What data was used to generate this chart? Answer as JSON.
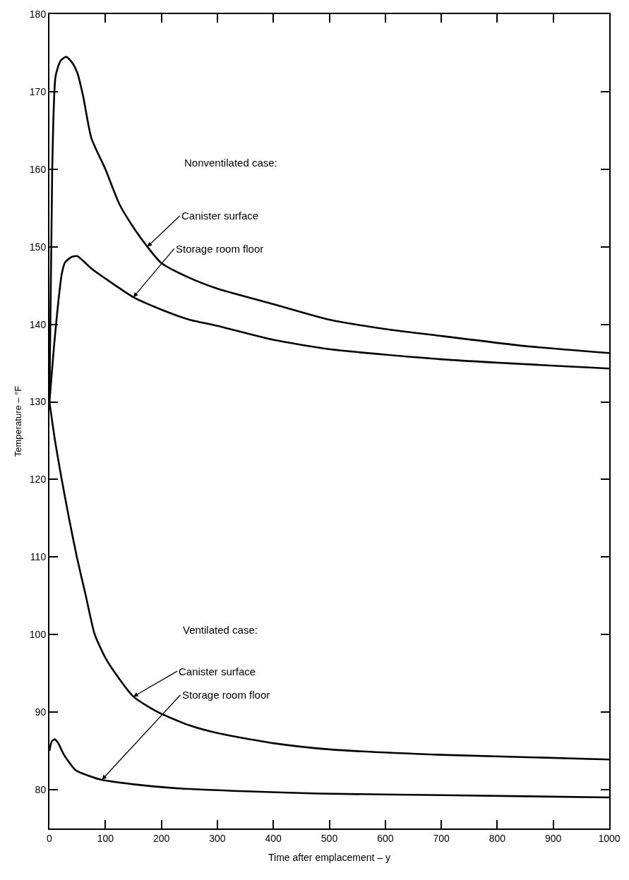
{
  "chart_data": {
    "type": "line",
    "xlabel": "Time after emplacement – y",
    "ylabel": "Temperature – °F",
    "xlim": [
      0,
      1000
    ],
    "xticks": [
      0,
      100,
      200,
      300,
      400,
      500,
      600,
      700,
      800,
      900,
      1000
    ],
    "ylim": [
      75,
      180
    ],
    "yticks": [
      80,
      90,
      100,
      110,
      120,
      130,
      140,
      150,
      160,
      170,
      180
    ],
    "marker": "none",
    "line_style": "solid",
    "series": [
      {
        "color": "#000000",
        "x": [
          0,
          5,
          11,
          20,
          30,
          40,
          50,
          60,
          75,
          100,
          125,
          150,
          175,
          200,
          250,
          300,
          400,
          500,
          600,
          700,
          850,
          1000
        ],
        "values": [
          130,
          160,
          172,
          174,
          174.5,
          173.8,
          172.4,
          169.5,
          164,
          160,
          155.5,
          152.5,
          150,
          147.9,
          146,
          144.6,
          142.6,
          140.6,
          139.4,
          138.5,
          137.2,
          136.3
        ]
      },
      {
        "color": "#000000",
        "x": [
          0,
          8,
          15,
          22,
          28,
          40,
          50,
          60,
          75,
          100,
          150,
          200,
          250,
          300,
          400,
          500,
          700,
          1000
        ],
        "values": [
          130,
          137,
          142.3,
          146.5,
          148,
          148.7,
          148.8,
          148.2,
          147.2,
          145.9,
          143.5,
          141.9,
          140.6,
          139.8,
          138,
          136.8,
          135.5,
          134.3
        ]
      },
      {
        "color": "#000000",
        "x": [
          0,
          10,
          22,
          35,
          49,
          65,
          81,
          100,
          112,
          150,
          194,
          250,
          300,
          400,
          500,
          700,
          1000
        ],
        "values": [
          130,
          125,
          120,
          115,
          110,
          105,
          100,
          97,
          95.6,
          92,
          90,
          88.3,
          87.3,
          86,
          85.2,
          84.5,
          83.9
        ]
      },
      {
        "color": "#000000",
        "x": [
          0,
          4,
          9,
          15,
          26,
          47,
          70,
          92,
          150,
          225,
          350,
          480,
          700,
          1000
        ],
        "values": [
          85,
          86.2,
          86.5,
          86.1,
          84.5,
          82.5,
          81.8,
          81.3,
          80.7,
          80.2,
          79.8,
          79.5,
          79.3,
          79
        ]
      }
    ],
    "annotations": [
      "Nonventilated case:",
      {
        "text": "Canister surface",
        "x": 175,
        "y": 150
      },
      {
        "text": "Storage room floor",
        "x": 150,
        "y": 143.5
      },
      "Ventilated case:",
      {
        "text": "Canister surface",
        "x": 150,
        "y": 92
      },
      {
        "text": "Storage room floor",
        "x": 94,
        "y": 81.3
      }
    ]
  }
}
